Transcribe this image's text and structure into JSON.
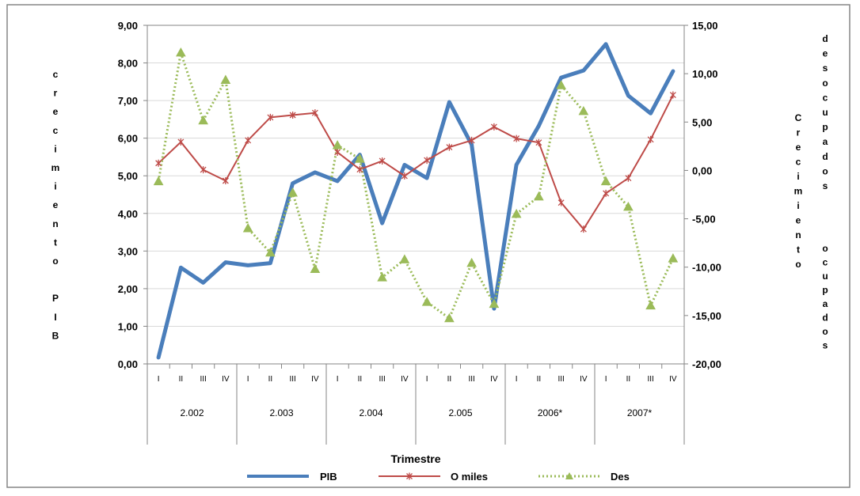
{
  "chart_data": {
    "type": "line",
    "x_categories": [
      "I",
      "II",
      "III",
      "IV",
      "I",
      "II",
      "III",
      "IV",
      "I",
      "II",
      "III",
      "IV",
      "I",
      "II",
      "III",
      "IV",
      "I",
      "II",
      "III",
      "IV",
      "I",
      "II",
      "III",
      "IV"
    ],
    "year_groups": [
      {
        "label": "2.002",
        "quarters": 4
      },
      {
        "label": "2.003",
        "quarters": 4
      },
      {
        "label": "2.004",
        "quarters": 4
      },
      {
        "label": "2.005",
        "quarters": 4
      },
      {
        "label": "2006*",
        "quarters": 4
      },
      {
        "label": "2007*",
        "quarters": 4
      }
    ],
    "xlabel": "Trimestre",
    "ylabel_left": "crecimiento PIB",
    "ylabel_right_inner": "Crecimiento",
    "ylabel_right_inner2": "ocupados",
    "ylabel_right_outer": "desocupados",
    "y_left": {
      "min": 0,
      "max": 9,
      "step": 1,
      "tick_labels": [
        "0,00",
        "1,00",
        "2,00",
        "3,00",
        "4,00",
        "5,00",
        "6,00",
        "7,00",
        "8,00",
        "9,00"
      ]
    },
    "y_right": {
      "min": -20,
      "max": 15,
      "step": 5,
      "tick_labels": [
        "-20,00",
        "-15,00",
        "-10,00",
        "-5,00",
        "0,00",
        "5,00",
        "10,00",
        "15,00"
      ]
    },
    "series": [
      {
        "name": "PIB",
        "axis": "left",
        "color": "#4a7ebb",
        "style": "solid-thick",
        "marker": "none",
        "values": [
          0.17,
          2.56,
          2.16,
          2.7,
          2.62,
          2.68,
          4.8,
          5.09,
          4.86,
          5.56,
          3.74,
          5.29,
          4.94,
          6.96,
          5.83,
          1.47,
          5.29,
          6.33,
          7.61,
          7.8,
          8.5,
          7.13,
          6.66,
          7.78
        ]
      },
      {
        "name": "O miles",
        "axis": "right",
        "color": "#be4b48",
        "style": "solid",
        "marker": "star",
        "values": [
          0.75,
          2.94,
          0.07,
          -1.07,
          3.11,
          5.48,
          5.72,
          5.95,
          1.88,
          0.1,
          0.98,
          -0.57,
          1.05,
          2.4,
          3.11,
          4.5,
          3.3,
          2.88,
          -3.33,
          -6.07,
          -2.37,
          -0.8,
          3.2,
          7.8
        ]
      },
      {
        "name": "Des",
        "axis": "right",
        "color": "#9bbb59",
        "style": "dotted",
        "marker": "triangle",
        "values": [
          -1.13,
          12.18,
          5.16,
          9.35,
          -5.98,
          -8.5,
          -2.3,
          -10.2,
          2.6,
          1.19,
          -11.06,
          -9.2,
          -13.6,
          -15.29,
          -9.57,
          -13.8,
          -4.5,
          -2.7,
          8.8,
          6.13,
          -1.13,
          -3.77,
          -13.97,
          -9.1
        ]
      }
    ]
  }
}
